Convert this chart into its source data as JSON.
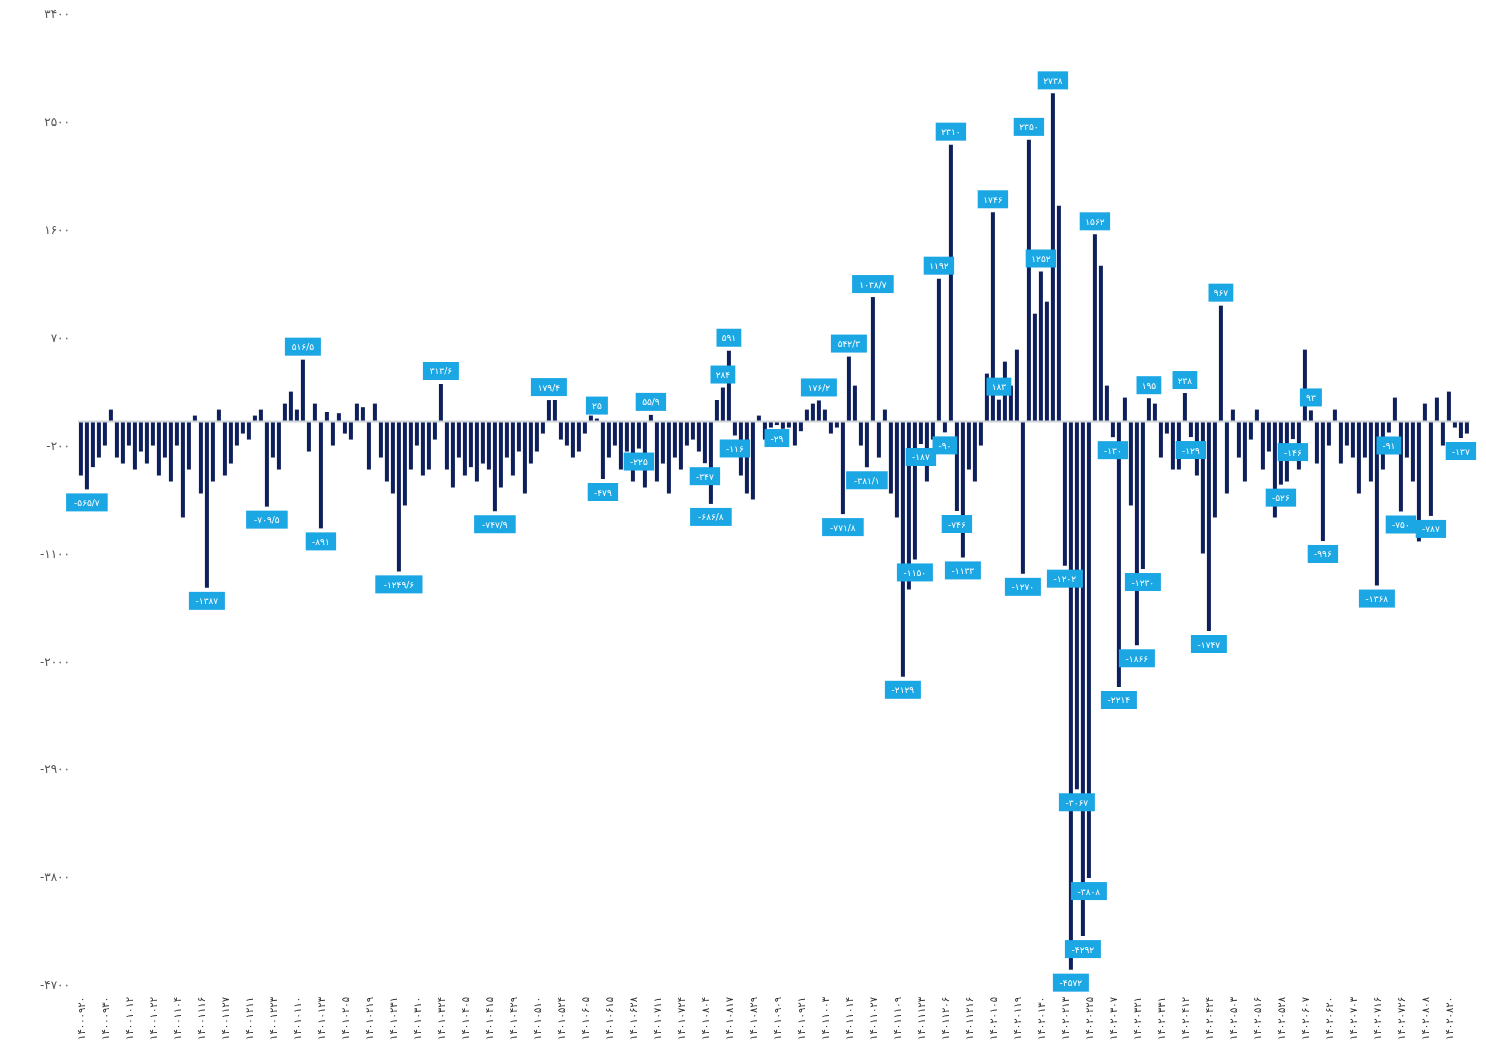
{
  "chart_data": {
    "type": "bar",
    "categories": [
      "۱۴۰۰۰۹۲۰",
      null,
      null,
      null,
      "۱۴۰۰۰۹۳۰",
      null,
      null,
      null,
      "۱۴۰۰۱۰۱۲",
      null,
      null,
      null,
      "۱۴۰۰۱۰۲۲",
      null,
      null,
      null,
      "۱۴۰۰۱۱۰۴",
      null,
      null,
      null,
      "۱۴۰۰۱۱۱۶",
      null,
      null,
      null,
      "۱۴۰۰۱۱۲۷",
      null,
      null,
      null,
      "۱۴۰۰۱۲۱۱",
      null,
      null,
      null,
      "۱۴۰۰۱۲۲۳",
      null,
      null,
      null,
      "۱۴۰۱۰۱۱۰",
      null,
      null,
      null,
      "۱۴۰۱۰۱۲۳",
      null,
      null,
      null,
      "۱۴۰۱۰۲۰۵",
      null,
      null,
      null,
      "۱۴۰۱۰۲۱۹",
      null,
      null,
      null,
      "۱۴۰۱۰۲۳۱",
      null,
      null,
      null,
      "۱۴۰۱۰۳۱۰",
      null,
      null,
      null,
      "۱۴۰۱۰۳۲۴",
      null,
      null,
      null,
      "۱۴۰۱۰۴۰۵",
      null,
      null,
      null,
      "۱۴۰۱۰۴۱۵",
      null,
      null,
      null,
      "۱۴۰۱۰۴۲۹",
      null,
      null,
      null,
      "۱۴۰۱۰۵۱۰",
      null,
      null,
      null,
      "۱۴۰۱۰۵۲۴",
      null,
      null,
      null,
      "۱۴۰۱۰۶۰۵",
      null,
      null,
      null,
      "۱۴۰۱۰۶۱۵",
      null,
      null,
      null,
      "۱۴۰۱۰۶۲۸",
      null,
      null,
      null,
      "۱۴۰۱۰۷۱۱",
      null,
      null,
      null,
      "۱۴۰۱۰۷۲۴",
      null,
      null,
      null,
      "۱۴۰۱۰۸۰۴",
      null,
      null,
      null,
      "۱۴۰۱۰۸۱۷",
      null,
      null,
      null,
      "۱۴۰۱۰۸۲۹",
      null,
      null,
      null,
      "۱۴۰۱۰۹۰۹",
      null,
      null,
      null,
      "۱۴۰۱۰۹۲۱",
      null,
      null,
      null,
      "۱۴۰۱۱۰۰۳",
      null,
      null,
      null,
      "۱۴۰۱۱۰۱۴",
      null,
      null,
      null,
      "۱۴۰۱۱۰۲۷",
      null,
      null,
      null,
      "۱۴۰۱۱۱۰۹",
      null,
      null,
      null,
      "۱۴۰۱۱۱۲۳",
      null,
      null,
      null,
      "۱۴۰۱۱۲۰۶",
      null,
      null,
      null,
      "۱۴۰۱۱۲۱۶",
      null,
      null,
      null,
      "۱۴۰۲۰۱۰۵",
      null,
      null,
      null,
      "۱۴۰۲۰۱۱۹",
      null,
      null,
      null,
      "۱۴۰۲۰۱۳۰",
      null,
      null,
      null,
      "۱۴۰۲۰۲۱۳",
      null,
      null,
      null,
      "۱۴۰۲۰۲۲۵",
      null,
      null,
      null,
      "۱۴۰۲۰۳۰۷",
      null,
      null,
      null,
      "۱۴۰۲۰۳۲۱",
      null,
      null,
      null,
      "۱۴۰۲۰۳۳۱",
      null,
      null,
      null,
      "۱۴۰۲۰۴۱۲",
      null,
      null,
      null,
      "۱۴۰۲۰۴۲۴",
      null,
      null,
      null,
      "۱۴۰۲۰۵۰۳",
      null,
      null,
      null,
      "۱۴۰۲۰۵۱۶",
      null,
      null,
      null,
      "۱۴۰۲۰۵۲۸",
      null,
      null,
      null,
      "۱۴۰۲۰۶۰۷",
      null,
      null,
      null,
      "۱۴۰۲۰۶۲۰",
      null,
      null,
      null,
      "۱۴۰۲۰۷۰۳",
      null,
      null,
      null,
      "۱۴۰۲۰۷۱۶",
      null,
      null,
      null,
      "۱۴۰۲۰۷۲۶",
      null,
      null,
      null,
      "۱۴۰۲۰۸۰۸",
      null,
      null,
      null,
      "۱۴۰۲۰۸۲۰",
      null,
      null,
      null
    ],
    "values": [
      -450,
      -565.7,
      -380,
      -300,
      -200,
      100,
      -300,
      -350,
      -200,
      -400,
      -250,
      -350,
      -200,
      -450,
      -300,
      -500,
      -200,
      -800,
      -400,
      50,
      -600,
      -1387,
      -500,
      100,
      -450,
      -350,
      -200,
      -100,
      -150,
      50,
      100,
      -709.5,
      -300,
      -400,
      150,
      250,
      100,
      516.5,
      -250,
      150,
      -891,
      80,
      -200,
      70,
      -100,
      -150,
      150,
      120,
      -400,
      150,
      -300,
      -500,
      -600,
      -1249.6,
      -700,
      -400,
      -200,
      -450,
      -400,
      -150,
      313.6,
      -400,
      -550,
      -300,
      -450,
      -380,
      -500,
      -350,
      -400,
      -747.9,
      -550,
      -300,
      -450,
      -250,
      -600,
      -350,
      -250,
      -100,
      179.4,
      180,
      -150,
      -200,
      -300,
      -250,
      -100,
      50,
      25,
      -479,
      -300,
      -200,
      -400,
      -250,
      -500,
      -225,
      -550,
      55.9,
      -500,
      -350,
      -600,
      -300,
      -400,
      -200,
      -150,
      -250,
      -347,
      -686.8,
      180,
      284,
      591,
      -116,
      -450,
      -600,
      -650,
      50,
      -150,
      -50,
      -29,
      -60,
      -50,
      -200,
      -80,
      100,
      150,
      176.2,
      100,
      -100,
      -50,
      -771.8,
      542.3,
      300,
      -200,
      -381.1,
      1038.7,
      -300,
      100,
      -600,
      -800,
      -2129,
      -1400,
      -1150,
      -187,
      -500,
      -150,
      1192,
      -90,
      2310,
      -746,
      -1133,
      -400,
      -500,
      -200,
      400,
      1746,
      183,
      500,
      300,
      600,
      -1270,
      2350,
      900,
      1252,
      1000,
      2738,
      1800,
      -1202,
      -4572,
      -3067,
      -4292,
      -3808,
      1562,
      1300,
      300,
      -130,
      -2214,
      200,
      -700,
      -1866,
      -1230,
      195,
      150,
      -300,
      -100,
      -400,
      -400,
      238,
      -129,
      -450,
      -1100,
      -1747,
      -800,
      967,
      -600,
      100,
      -300,
      -500,
      -150,
      100,
      -400,
      -250,
      -800,
      -526,
      -500,
      -146,
      -400,
      600,
      93,
      -350,
      -996,
      -200,
      100,
      -350,
      -200,
      -300,
      -600,
      -300,
      -500,
      -1368,
      -400,
      -91,
      200,
      -750,
      -300,
      -500,
      -1000,
      150,
      -787,
      200,
      -200,
      250,
      -50,
      -137,
      -100
    ],
    "value_labels": [
      null,
      "-۵۶۵/۷",
      null,
      null,
      null,
      null,
      null,
      null,
      null,
      null,
      null,
      null,
      null,
      null,
      null,
      null,
      null,
      null,
      null,
      null,
      null,
      "-۱۳۸۷",
      null,
      null,
      null,
      null,
      null,
      null,
      null,
      null,
      null,
      "-۷۰۹/۵",
      null,
      null,
      null,
      null,
      null,
      "۵۱۶/۵",
      null,
      null,
      "-۸۹۱",
      null,
      null,
      null,
      null,
      null,
      null,
      null,
      null,
      null,
      null,
      null,
      null,
      "-۱۲۴۹/۶",
      null,
      null,
      null,
      null,
      null,
      null,
      "۳۱۳/۶",
      null,
      null,
      null,
      null,
      null,
      null,
      null,
      null,
      "-۷۴۷/۹",
      null,
      null,
      null,
      null,
      null,
      null,
      null,
      null,
      "۱۷۹/۴",
      null,
      null,
      null,
      null,
      null,
      null,
      null,
      "۲۵",
      "-۴۷۹",
      null,
      null,
      null,
      null,
      null,
      "-۲۲۵",
      null,
      "۵۵/۹",
      null,
      null,
      null,
      null,
      null,
      null,
      null,
      null,
      "-۳۴۷",
      "-۶۸۶/۸",
      null,
      "۲۸۴",
      "۵۹۱",
      "-۱۱۶",
      null,
      null,
      null,
      null,
      null,
      null,
      "-۲۹",
      null,
      null,
      null,
      null,
      null,
      null,
      "۱۷۶/۲",
      null,
      null,
      null,
      "-۷۷۱/۸",
      "۵۴۲/۳",
      null,
      null,
      "-۳۸۱/۱",
      "۱۰۳۸/۷",
      null,
      null,
      null,
      null,
      "-۲۱۲۹",
      null,
      "-۱۱۵۰",
      "-۱۸۷",
      null,
      null,
      "۱۱۹۲",
      "-۹۰",
      "۲۳۱۰",
      "-۷۴۶",
      "-۱۱۳۳",
      null,
      null,
      null,
      null,
      "۱۷۴۶",
      "۱۸۳",
      null,
      null,
      null,
      "-۱۲۷۰",
      "۲۳۵۰",
      null,
      "۱۲۵۲",
      null,
      "۲۷۳۸",
      null,
      "-۱۲۰۲",
      "-۴۵۷۲",
      "-۳۰۶۷",
      "-۴۲۹۲",
      "-۳۸۰۸",
      "۱۵۶۲",
      null,
      null,
      "-۱۳۰",
      "-۲۲۱۴",
      null,
      null,
      "-۱۸۶۶",
      "-۱۲۳۰",
      "۱۹۵",
      null,
      null,
      null,
      null,
      null,
      "۲۳۸",
      "-۱۲۹",
      null,
      null,
      "-۱۷۴۷",
      null,
      "۹۶۷",
      null,
      null,
      null,
      null,
      null,
      null,
      null,
      null,
      null,
      "-۵۲۶",
      null,
      "-۱۴۶",
      null,
      null,
      "۹۳",
      null,
      "-۹۹۶",
      null,
      null,
      null,
      null,
      null,
      null,
      null,
      null,
      "-۱۳۶۸",
      null,
      "-۹۱",
      null,
      "-۷۵۰",
      null,
      null,
      null,
      null,
      "-۷۸۷",
      null,
      null,
      null,
      null,
      "-۱۳۷",
      null
    ],
    "color": "#0d1f5c",
    "ylim": [
      -4700,
      3400
    ],
    "yticks": [
      {
        "value": -4700,
        "label": "-۴۷۰۰"
      },
      {
        "value": -3800,
        "label": "-۳۸۰۰"
      },
      {
        "value": -2900,
        "label": "-۲۹۰۰"
      },
      {
        "value": -2000,
        "label": "-۲۰۰۰"
      },
      {
        "value": -1100,
        "label": "-۱۱۰۰"
      },
      {
        "value": -200,
        "label": "-۲۰۰"
      },
      {
        "value": 700,
        "label": "۷۰۰"
      },
      {
        "value": 1600,
        "label": "۱۶۰۰"
      },
      {
        "value": 2500,
        "label": "۲۵۰۰"
      },
      {
        "value": 3400,
        "label": "۳۴۰۰"
      }
    ],
    "grid": false,
    "legend": false
  }
}
